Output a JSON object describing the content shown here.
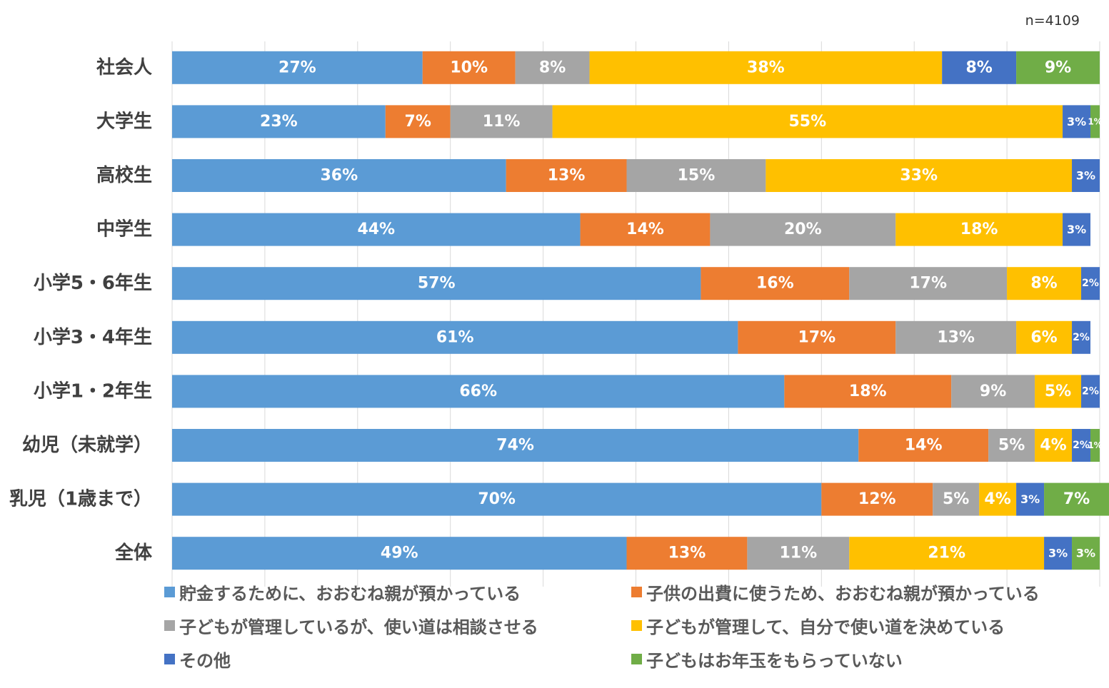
{
  "chart_data": {
    "type": "bar",
    "orientation": "horizontal",
    "stacked": true,
    "note": "n=4109",
    "xlim": [
      0,
      100
    ],
    "grid": true,
    "legend_position": "bottom",
    "categories": [
      "社会人",
      "大学生",
      "高校生",
      "中学生",
      "小学5・6年生",
      "小学3・4年生",
      "小学1・2年生",
      "幼児（未就学）",
      "乳児（1歳まで）",
      "全体"
    ],
    "series": [
      {
        "name": "貯金するために、おおむね親が預かっている",
        "color": "#5B9BD5",
        "values": [
          27,
          23,
          36,
          44,
          57,
          61,
          66,
          74,
          70,
          49
        ]
      },
      {
        "name": "子供の出費に使うため、おおむね親が預かっている",
        "color": "#ED7D31",
        "values": [
          10,
          7,
          13,
          14,
          16,
          17,
          18,
          14,
          12,
          13
        ]
      },
      {
        "name": "子どもが管理しているが、使い道は相談させる",
        "color": "#A5A5A5",
        "values": [
          8,
          11,
          15,
          20,
          17,
          13,
          9,
          5,
          5,
          11
        ]
      },
      {
        "name": "子どもが管理して、自分で使い道を決めている",
        "color": "#FFC000",
        "values": [
          38,
          55,
          33,
          18,
          8,
          6,
          5,
          4,
          4,
          21
        ]
      },
      {
        "name": "その他",
        "color": "#4472C4",
        "values": [
          8,
          3,
          3,
          3,
          2,
          2,
          2,
          2,
          3,
          3
        ]
      },
      {
        "name": "子どもはお年玉をもらっていない",
        "color": "#70AD47",
        "values": [
          9,
          1,
          0,
          0,
          0,
          0,
          0,
          1,
          7,
          3
        ]
      }
    ]
  }
}
